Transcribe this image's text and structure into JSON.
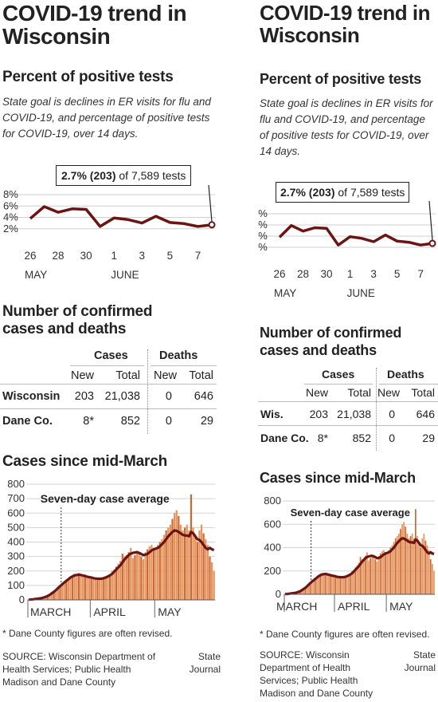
{
  "title": "COVID-19 trend in Wisconsin",
  "positivity": {
    "heading": "Percent of positive tests",
    "description": "State goal is declines in ER visits for flu and COVID-19, and percentage of positive tests for COVID-19, over 14 days.",
    "callout_bold": "2.7% (203)",
    "callout_rest": " of 7,589 tests"
  },
  "cases_table": {
    "heading": "Number of confirmed cases and deaths",
    "group_cases": "Cases",
    "group_deaths": "Deaths",
    "col_new": "New",
    "col_total": "Total",
    "rows": [
      {
        "label": "Wisconsin",
        "label_short": "Wis.",
        "cases_new": "203",
        "cases_total": "21,038",
        "deaths_new": "0",
        "deaths_total": "646"
      },
      {
        "label": "Dane Co.",
        "label_short": "Dane Co.",
        "cases_new": "8*",
        "cases_total": "852",
        "deaths_new": "0",
        "deaths_total": "29"
      }
    ]
  },
  "cases_chart": {
    "heading": "Cases since mid-March",
    "annotation": "Seven-day case average"
  },
  "footnote": "* Dane County figures are often revised.",
  "source": "SOURCE: Wisconsin Department of Health Services; Public Health Madison and Dane County",
  "credit": "State Journal",
  "colors": {
    "line": "#6b1414",
    "bar": "#e8935a",
    "bar_dark": "#c96a35",
    "avg_line": "#6b1414"
  },
  "chart_data": [
    {
      "type": "line",
      "title": "Percent of positive tests",
      "x": [
        "26",
        "27",
        "28",
        "29",
        "30",
        "31",
        "1",
        "2",
        "3",
        "4",
        "5",
        "6",
        "7",
        "8"
      ],
      "x_tick_labels": [
        "26",
        "28",
        "30",
        "1",
        "3",
        "5",
        "7"
      ],
      "x_group_labels": [
        "MAY",
        "JUNE"
      ],
      "y_ticks": [
        "2%",
        "4%",
        "6%",
        "8%"
      ],
      "ylim": [
        0,
        8
      ],
      "series": [
        {
          "values": [
            3.8,
            5.9,
            4.9,
            5.5,
            5.4,
            2.4,
            3.9,
            3.6,
            3.0,
            4.2,
            3.1,
            2.9,
            2.4,
            2.7
          ]
        }
      ],
      "last_point_label": "2.7% (203) of 7,589 tests"
    },
    {
      "type": "bar",
      "title": "Cases since mid-March",
      "x_group_labels": [
        "MARCH",
        "APRIL",
        "MAY"
      ],
      "y_ticks": [
        0,
        100,
        200,
        300,
        400,
        500,
        600,
        700,
        800
      ],
      "ylim": [
        0,
        800
      ],
      "values": [
        2,
        3,
        4,
        6,
        8,
        10,
        12,
        18,
        25,
        30,
        40,
        55,
        60,
        70,
        90,
        100,
        110,
        125,
        130,
        145,
        160,
        170,
        180,
        180,
        185,
        170,
        160,
        175,
        150,
        160,
        145,
        140,
        150,
        145,
        140,
        150,
        155,
        165,
        170,
        175,
        200,
        210,
        230,
        250,
        270,
        320,
        300,
        310,
        330,
        360,
        290,
        310,
        340,
        320,
        300,
        280,
        330,
        350,
        370,
        380,
        360,
        350,
        380,
        400,
        420,
        450,
        480,
        500,
        520,
        560,
        600,
        620,
        580,
        520,
        480,
        500,
        520,
        480,
        730,
        500,
        450,
        400,
        480,
        520,
        460,
        420,
        380,
        300,
        260,
        200
      ],
      "avg": [
        2,
        3,
        4,
        6,
        8,
        10,
        12,
        16,
        21,
        27,
        35,
        45,
        55,
        68,
        82,
        95,
        108,
        120,
        132,
        143,
        155,
        163,
        170,
        172,
        175,
        172,
        168,
        165,
        160,
        158,
        155,
        150,
        148,
        147,
        146,
        147,
        150,
        155,
        162,
        170,
        180,
        195,
        210,
        225,
        240,
        260,
        280,
        295,
        310,
        320,
        325,
        328,
        330,
        325,
        318,
        310,
        312,
        318,
        330,
        342,
        350,
        355,
        360,
        370,
        385,
        400,
        420,
        440,
        455,
        470,
        480,
        478,
        470,
        460,
        450,
        445,
        445,
        440,
        470,
        460,
        440,
        420,
        415,
        400,
        380,
        360,
        350,
        360,
        350,
        345
      ]
    }
  ]
}
